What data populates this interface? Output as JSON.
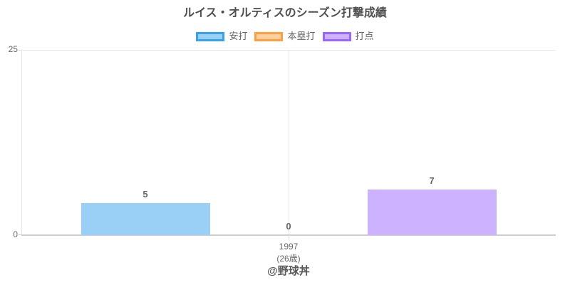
{
  "chart_data": {
    "type": "bar",
    "title": "ルイス・オルティスのシーズン打撃成績",
    "categories": [
      "1997"
    ],
    "category_sublabels": [
      "(26歳)"
    ],
    "series": [
      {
        "name": "安打",
        "values": [
          5
        ],
        "fill": "#9AD0F5",
        "border": "#36A2EB"
      },
      {
        "name": "本塁打",
        "values": [
          0
        ],
        "fill": "#FFCF9F",
        "border": "#FF9F40"
      },
      {
        "name": "打点",
        "values": [
          7
        ],
        "fill": "#CCB2FF",
        "border": "#9966FF"
      }
    ],
    "xlabel": "",
    "ylabel": "",
    "ylim": [
      0,
      25
    ],
    "y_tick_labels": [
      "0",
      "25"
    ],
    "grid": true,
    "legend_position": "top",
    "bar_value_labels_shown": true
  },
  "footer": {
    "credit": "@野球丼"
  }
}
